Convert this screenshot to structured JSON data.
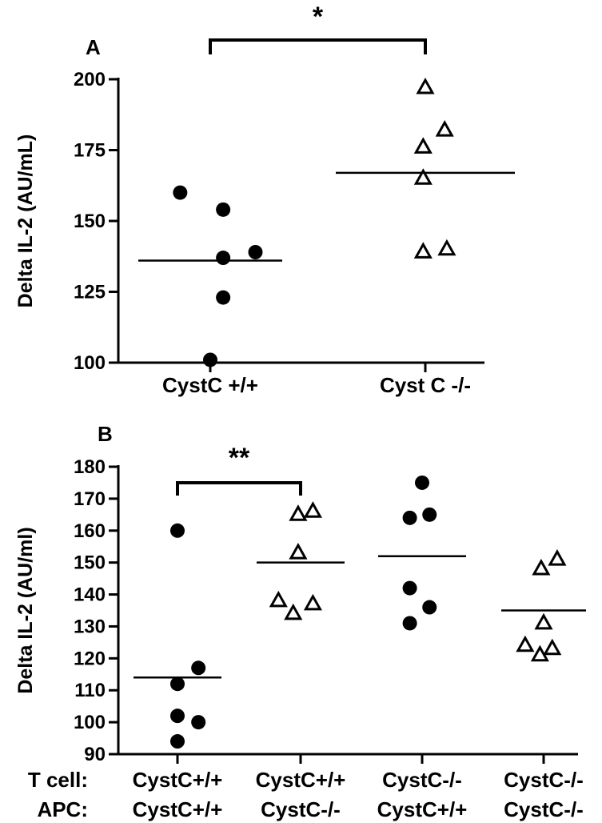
{
  "chart_data": [
    {
      "panel": "A",
      "type": "scatter",
      "ylabel": "Delta IL-2 (AU/mL)",
      "ylim": [
        100,
        200
      ],
      "yticks": [
        100,
        125,
        150,
        175,
        200
      ],
      "categories": [
        "CystC +/+",
        "Cyst C -/-"
      ],
      "series": [
        {
          "marker": "circle",
          "points": [
            {
              "x": -0.14,
              "y": 160
            },
            {
              "x": 0.06,
              "y": 154
            },
            {
              "x": 0.06,
              "y": 137
            },
            {
              "x": 0.21,
              "y": 139
            },
            {
              "x": 0.06,
              "y": 123
            },
            {
              "x": 0.0,
              "y": 101
            }
          ],
          "mean": 136
        },
        {
          "marker": "triangle",
          "points": [
            {
              "x": 0.0,
              "y": 197
            },
            {
              "x": 0.09,
              "y": 182
            },
            {
              "x": -0.01,
              "y": 176
            },
            {
              "x": -0.01,
              "y": 165
            },
            {
              "x": -0.01,
              "y": 139
            },
            {
              "x": 0.1,
              "y": 140
            }
          ],
          "mean": 167
        }
      ],
      "significance": {
        "from": 0,
        "to": 1,
        "label": "*"
      }
    },
    {
      "panel": "B",
      "type": "scatter",
      "ylabel": "Delta IL-2 (AU/ml)",
      "ylim": [
        90,
        180
      ],
      "yticks": [
        90,
        100,
        110,
        120,
        130,
        140,
        150,
        160,
        170,
        180
      ],
      "row_labels": [
        "T cell:",
        "APC:"
      ],
      "categories": [
        {
          "tcell": "CystC+/+",
          "apc": "CystC+/+"
        },
        {
          "tcell": "CystC+/+",
          "apc": "CystC-/-"
        },
        {
          "tcell": "CystC-/-",
          "apc": "CystC+/+"
        },
        {
          "tcell": "CystC-/-",
          "apc": "CystC-/-"
        }
      ],
      "series": [
        {
          "marker": "circle",
          "points": [
            {
              "x": 0.0,
              "y": 160
            },
            {
              "x": 0.17,
              "y": 117
            },
            {
              "x": 0.0,
              "y": 112
            },
            {
              "x": 0.0,
              "y": 102
            },
            {
              "x": 0.17,
              "y": 100
            },
            {
              "x": 0.0,
              "y": 94
            }
          ],
          "mean": 114
        },
        {
          "marker": "triangle",
          "points": [
            {
              "x": -0.02,
              "y": 165
            },
            {
              "x": 0.1,
              "y": 166
            },
            {
              "x": -0.02,
              "y": 153
            },
            {
              "x": -0.18,
              "y": 138
            },
            {
              "x": 0.1,
              "y": 137
            },
            {
              "x": -0.06,
              "y": 134
            }
          ],
          "mean": 150
        },
        {
          "marker": "circle",
          "points": [
            {
              "x": 0.0,
              "y": 175
            },
            {
              "x": -0.1,
              "y": 164
            },
            {
              "x": 0.06,
              "y": 165
            },
            {
              "x": -0.1,
              "y": 142
            },
            {
              "x": 0.06,
              "y": 136
            },
            {
              "x": -0.1,
              "y": 131
            }
          ],
          "mean": 152
        },
        {
          "marker": "triangle",
          "points": [
            {
              "x": -0.02,
              "y": 148
            },
            {
              "x": 0.11,
              "y": 151
            },
            {
              "x": 0.0,
              "y": 131
            },
            {
              "x": -0.15,
              "y": 124
            },
            {
              "x": -0.03,
              "y": 121
            },
            {
              "x": 0.07,
              "y": 123
            }
          ],
          "mean": 135
        }
      ],
      "significance": {
        "from": 0,
        "to": 1,
        "label": "**"
      }
    }
  ]
}
